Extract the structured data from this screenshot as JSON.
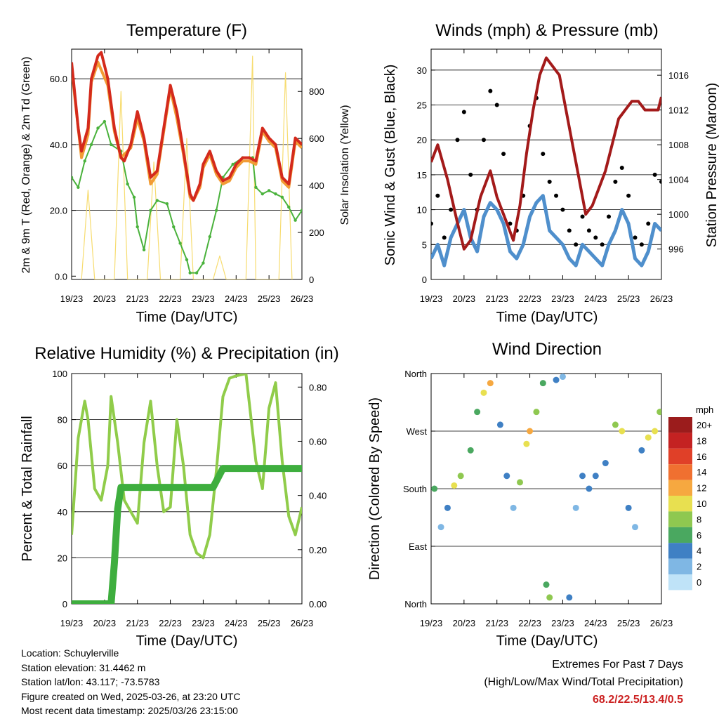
{
  "charts": {
    "temperature": {
      "title": "Temperature (F)",
      "xlabel": "Time (Day/UTC)",
      "ylabel_left": "2m & 9m T (Red, Orange) & 2m Td (Green)",
      "ylabel_right": "Solar Insolation (Yellow)"
    },
    "winds": {
      "title": "Winds (mph) & Pressure (mb)",
      "xlabel": "Time (Day/UTC)",
      "ylabel_left": "Sonic Wind & Gust (Blue, Black)",
      "ylabel_right": "Station Pressure (Maroon)"
    },
    "humidity": {
      "title": "Relative Humidity (%) & Precipitation (in)",
      "xlabel": "Time (Day/UTC)",
      "ylabel_left": "Percent & Total Rainfall"
    },
    "direction": {
      "title": "Wind Direction",
      "xlabel": "Time (Day/UTC)",
      "ylabel_left": "Direction (Colored By Speed)",
      "legend_title": "mph"
    }
  },
  "chart_data": [
    {
      "type": "line",
      "title": "Temperature (F)",
      "xlabel": "Time (Day/UTC)",
      "ylabel": "2m & 9m T (Red, Orange) & 2m Td (Green)",
      "y2label": "Solar Insolation (Yellow)",
      "x_ticks": [
        "19/23",
        "20/23",
        "21/23",
        "22/23",
        "23/23",
        "24/23",
        "25/23",
        "26/23"
      ],
      "y_ticks": [
        "0.0",
        "20.0",
        "40.0",
        "60.0"
      ],
      "y2_ticks": [
        "0",
        "200",
        "400",
        "600",
        "800"
      ],
      "ylim": [
        -1,
        69
      ],
      "y2lim": [
        0,
        980
      ],
      "grid": true,
      "colors": {
        "t2m": "#d42a1c",
        "t9m": "#f29c35",
        "td2m": "#4ab23c",
        "solar": "#f7dc6f"
      },
      "series": [
        {
          "key": "t2m",
          "x": [
            0,
            0.1,
            0.2,
            0.3,
            0.5,
            0.6,
            0.8,
            0.9,
            1.1,
            1.3,
            1.5,
            1.6,
            1.8,
            2.0,
            2.2,
            2.4,
            2.6,
            2.8,
            3.0,
            3.2,
            3.4,
            3.6,
            3.7,
            3.9,
            4.0,
            4.2,
            4.4,
            4.6,
            4.8,
            5.0,
            5.2,
            5.4,
            5.6,
            5.8,
            6.0,
            6.2,
            6.4,
            6.6,
            6.8,
            7.0
          ],
          "y": [
            65,
            55,
            45,
            38,
            45,
            60,
            67,
            68,
            60,
            45,
            36,
            35,
            40,
            50,
            42,
            30,
            32,
            45,
            58,
            50,
            38,
            25,
            23,
            28,
            34,
            38,
            32,
            29,
            30,
            34,
            36,
            36,
            35,
            45,
            42,
            40,
            30,
            28,
            42,
            40
          ]
        },
        {
          "key": "t9m",
          "x": [
            0,
            0.1,
            0.3,
            0.5,
            0.6,
            0.8,
            1.1,
            1.3,
            1.5,
            1.8,
            2.0,
            2.2,
            2.4,
            2.6,
            2.8,
            3.0,
            3.2,
            3.4,
            3.6,
            3.7,
            3.9,
            4.0,
            4.2,
            4.4,
            4.6,
            4.8,
            5.0,
            5.2,
            5.4,
            5.6,
            5.8,
            6.0,
            6.2,
            6.4,
            6.6,
            6.8,
            7.0
          ],
          "y": [
            64,
            54,
            36,
            43,
            59,
            65,
            58,
            44,
            36,
            39,
            48,
            41,
            28,
            31,
            44,
            57,
            48,
            37,
            24,
            23,
            27,
            33,
            37,
            31,
            28,
            29,
            33,
            35,
            35,
            34,
            44,
            41,
            39,
            29,
            27,
            41,
            39
          ]
        },
        {
          "key": "td2m",
          "x": [
            0,
            0.2,
            0.4,
            0.6,
            0.8,
            1.0,
            1.2,
            1.5,
            1.7,
            1.9,
            2.0,
            2.2,
            2.4,
            2.6,
            2.9,
            3.1,
            3.3,
            3.5,
            3.6,
            3.8,
            4.0,
            4.2,
            4.4,
            4.6,
            4.9,
            5.2,
            5.4,
            5.5,
            5.6,
            5.8,
            6.0,
            6.2,
            6.4,
            6.6,
            6.8,
            7.0
          ],
          "y": [
            30,
            27,
            35,
            40,
            45,
            47,
            40,
            38,
            28,
            24,
            15,
            8,
            20,
            23,
            22,
            15,
            10,
            5,
            1,
            1,
            4,
            12,
            20,
            30,
            34,
            36,
            36,
            36,
            27,
            25,
            26,
            25,
            24,
            21,
            17,
            20
          ]
        },
        {
          "key": "solar",
          "x": [
            0.3,
            0.5,
            0.7,
            1.3,
            1.5,
            1.7,
            2.3,
            2.5,
            2.7,
            3.3,
            3.5,
            3.7,
            4.3,
            4.5,
            4.7,
            5.3,
            5.5,
            5.6,
            6.3,
            6.5,
            6.7
          ],
          "y": [
            0,
            380,
            0,
            0,
            800,
            0,
            0,
            500,
            0,
            0,
            600,
            0,
            0,
            100,
            0,
            0,
            950,
            0,
            0,
            880,
            0
          ]
        }
      ]
    },
    {
      "type": "scatter",
      "title": "Winds (mph) & Pressure (mb)",
      "xlabel": "Time (Day/UTC)",
      "ylabel": "Sonic Wind & Gust (Blue, Black)",
      "y2label": "Station Pressure (Maroon)",
      "x_ticks": [
        "19/23",
        "20/23",
        "21/23",
        "22/23",
        "23/23",
        "24/23",
        "25/23",
        "26/23"
      ],
      "y_ticks": [
        "0",
        "5",
        "10",
        "15",
        "20",
        "25",
        "30"
      ],
      "y2_ticks": [
        "996",
        "1000",
        "1004",
        "1008",
        "1012",
        "1016"
      ],
      "ylim": [
        0,
        33
      ],
      "y2lim": [
        992.5,
        1019
      ],
      "grid": true,
      "colors": {
        "wind": "#4f8fcc",
        "gust": "#000000",
        "pressure": "#a31a1a"
      },
      "series": [
        {
          "key": "pressure",
          "x": [
            0,
            0.2,
            0.5,
            0.8,
            1.0,
            1.2,
            1.5,
            1.8,
            2.0,
            2.3,
            2.5,
            2.7,
            2.9,
            3.1,
            3.3,
            3.5,
            3.7,
            3.9,
            4.1,
            4.3,
            4.5,
            4.7,
            4.9,
            5.1,
            5.3,
            5.5,
            5.7,
            5.9,
            6.1,
            6.3,
            6.5,
            6.7,
            6.9,
            7.0
          ],
          "y": [
            1006,
            1008,
            1004,
            999,
            996,
            997,
            1002,
            1005,
            1002,
            999,
            997,
            1001,
            1007,
            1012,
            1016,
            1018,
            1017,
            1016,
            1012,
            1008,
            1004,
            1000,
            1001,
            1003,
            1005,
            1008,
            1011,
            1012,
            1013,
            1013,
            1012,
            1012,
            1012,
            1013.5
          ]
        },
        {
          "key": "wind",
          "x": [
            0,
            0.2,
            0.4,
            0.6,
            0.8,
            1.0,
            1.2,
            1.4,
            1.6,
            1.8,
            2.0,
            2.2,
            2.4,
            2.6,
            2.8,
            3.0,
            3.2,
            3.4,
            3.6,
            3.8,
            4.0,
            4.2,
            4.4,
            4.6,
            4.8,
            5.0,
            5.2,
            5.4,
            5.6,
            5.8,
            6.0,
            6.2,
            6.4,
            6.6,
            6.8,
            7.0
          ],
          "y": [
            3,
            5,
            2,
            6,
            8,
            10,
            6,
            4,
            9,
            11,
            10,
            8,
            4,
            3,
            5,
            9,
            11,
            12,
            7,
            6,
            5,
            3,
            2,
            5,
            4,
            3,
            2,
            5,
            7,
            10,
            8,
            3,
            2,
            4,
            8,
            7
          ]
        },
        {
          "key": "gust",
          "x": [
            0,
            0.2,
            0.4,
            0.6,
            0.8,
            1.0,
            1.2,
            1.4,
            1.6,
            1.8,
            2.0,
            2.2,
            2.4,
            2.6,
            2.8,
            3.0,
            3.2,
            3.4,
            3.6,
            3.8,
            4.0,
            4.2,
            4.4,
            4.6,
            4.8,
            5.0,
            5.2,
            5.4,
            5.6,
            5.8,
            6.0,
            6.2,
            6.4,
            6.6,
            6.8,
            7.0
          ],
          "y": [
            8,
            12,
            6,
            10,
            20,
            24,
            15,
            10,
            20,
            27,
            25,
            18,
            8,
            7,
            12,
            22,
            26,
            18,
            14,
            12,
            10,
            7,
            5,
            9,
            7,
            6,
            5,
            9,
            14,
            16,
            12,
            6,
            5,
            8,
            15,
            14
          ]
        }
      ]
    },
    {
      "type": "line",
      "title": "Relative Humidity (%) & Precipitation (in)",
      "xlabel": "Time (Day/UTC)",
      "ylabel": "Percent & Total Rainfall",
      "x_ticks": [
        "19/23",
        "20/23",
        "21/23",
        "22/23",
        "23/23",
        "24/23",
        "25/23",
        "26/23"
      ],
      "y_ticks": [
        "0",
        "20",
        "40",
        "60",
        "80",
        "100"
      ],
      "y2_ticks": [
        "0.00",
        "0.20",
        "0.40",
        "0.60",
        "0.80"
      ],
      "ylim": [
        0,
        100
      ],
      "y2lim": [
        0,
        0.85
      ],
      "grid": true,
      "colors": {
        "rh": "#90cc4a",
        "precip": "#3eae3e"
      },
      "series": [
        {
          "key": "rh",
          "x": [
            0,
            0.2,
            0.4,
            0.5,
            0.7,
            0.9,
            1.1,
            1.2,
            1.4,
            1.6,
            1.8,
            2.0,
            2.2,
            2.4,
            2.6,
            2.8,
            3.0,
            3.2,
            3.4,
            3.6,
            3.8,
            4.0,
            4.2,
            4.4,
            4.6,
            4.8,
            5.0,
            5.3,
            5.6,
            5.8,
            6.0,
            6.2,
            6.4,
            6.6,
            6.8,
            7.0
          ],
          "y": [
            30,
            72,
            88,
            80,
            50,
            45,
            60,
            90,
            70,
            45,
            40,
            35,
            70,
            88,
            60,
            40,
            42,
            80,
            60,
            30,
            22,
            20,
            30,
            58,
            90,
            98,
            99,
            100,
            62,
            50,
            85,
            96,
            62,
            38,
            30,
            42
          ]
        },
        {
          "key": "precip",
          "x": [
            0,
            1.2,
            1.3,
            1.4,
            1.5,
            2.0,
            3.0,
            4.0,
            4.3,
            4.6,
            5.0,
            6.0,
            7.0
          ],
          "y": [
            0,
            0,
            0.15,
            0.35,
            0.43,
            0.43,
            0.43,
            0.43,
            0.43,
            0.5,
            0.5,
            0.5,
            0.5
          ]
        }
      ]
    },
    {
      "type": "scatter",
      "title": "Wind Direction",
      "xlabel": "Time (Day/UTC)",
      "ylabel": "Direction (Colored By Speed)",
      "x_ticks": [
        "19/23",
        "20/23",
        "21/23",
        "22/23",
        "23/23",
        "24/23",
        "25/23",
        "26/23"
      ],
      "y_ticks": [
        "North",
        "East",
        "South",
        "West",
        "North"
      ],
      "ylim": [
        0,
        360
      ],
      "grid": true,
      "legend": {
        "title": "mph",
        "placement": "right",
        "labels": [
          "20+",
          "18",
          "16",
          "14",
          "12",
          "10",
          "8",
          "6",
          "4",
          "2",
          "0"
        ],
        "colors": [
          "#9b1c1c",
          "#c42222",
          "#e04028",
          "#f07030",
          "#f6a840",
          "#e8e050",
          "#8fc850",
          "#4aa860",
          "#3f80c4",
          "#7fb7e4",
          "#bfe3f8"
        ]
      },
      "points": [
        {
          "x": 0.1,
          "dir": 180,
          "speed": 5
        },
        {
          "x": 0.3,
          "dir": 120,
          "speed": 2
        },
        {
          "x": 0.5,
          "dir": 150,
          "speed": 3
        },
        {
          "x": 0.7,
          "dir": 185,
          "speed": 10
        },
        {
          "x": 0.9,
          "dir": 200,
          "speed": 8
        },
        {
          "x": 1.2,
          "dir": 240,
          "speed": 5
        },
        {
          "x": 1.4,
          "dir": 300,
          "speed": 6
        },
        {
          "x": 1.6,
          "dir": 330,
          "speed": 10
        },
        {
          "x": 1.8,
          "dir": 345,
          "speed": 12
        },
        {
          "x": 2.1,
          "dir": 280,
          "speed": 4
        },
        {
          "x": 2.3,
          "dir": 200,
          "speed": 3
        },
        {
          "x": 2.5,
          "dir": 150,
          "speed": 2
        },
        {
          "x": 2.7,
          "dir": 190,
          "speed": 8
        },
        {
          "x": 2.9,
          "dir": 250,
          "speed": 9
        },
        {
          "x": 3.0,
          "dir": 270,
          "speed": 12
        },
        {
          "x": 3.2,
          "dir": 300,
          "speed": 7
        },
        {
          "x": 3.4,
          "dir": 345,
          "speed": 5
        },
        {
          "x": 3.5,
          "dir": 30,
          "speed": 6
        },
        {
          "x": 3.6,
          "dir": 10,
          "speed": 8
        },
        {
          "x": 3.8,
          "dir": 350,
          "speed": 3
        },
        {
          "x": 4.0,
          "dir": 355,
          "speed": 2
        },
        {
          "x": 4.2,
          "dir": 10,
          "speed": 4
        },
        {
          "x": 4.4,
          "dir": 150,
          "speed": 2
        },
        {
          "x": 4.6,
          "dir": 200,
          "speed": 4
        },
        {
          "x": 4.8,
          "dir": 180,
          "speed": 3
        },
        {
          "x": 5.0,
          "dir": 200,
          "speed": 3
        },
        {
          "x": 5.3,
          "dir": 220,
          "speed": 3
        },
        {
          "x": 5.6,
          "dir": 280,
          "speed": 8
        },
        {
          "x": 5.8,
          "dir": 270,
          "speed": 10
        },
        {
          "x": 6.0,
          "dir": 150,
          "speed": 3
        },
        {
          "x": 6.2,
          "dir": 120,
          "speed": 2
        },
        {
          "x": 6.4,
          "dir": 240,
          "speed": 4
        },
        {
          "x": 6.6,
          "dir": 260,
          "speed": 9
        },
        {
          "x": 6.8,
          "dir": 270,
          "speed": 10
        },
        {
          "x": 6.95,
          "dir": 300,
          "speed": 7
        }
      ]
    }
  ],
  "footer": {
    "location": "Location: Schuylerville",
    "elevation": "Station elevation: 31.4462 m",
    "latlon": "Station lat/lon: 43.117; -73.5783",
    "created": "Figure created on Wed, 2025-03-26, at 23:20 UTC",
    "recent": "Most recent data timestamp: 2025/03/26 23:15:00"
  },
  "extremes": {
    "line1": "Extremes For Past 7 Days",
    "line2": "(High/Low/Max Wind/Total Precipitation)",
    "values": "68.2/22.5/13.4/0.5"
  }
}
